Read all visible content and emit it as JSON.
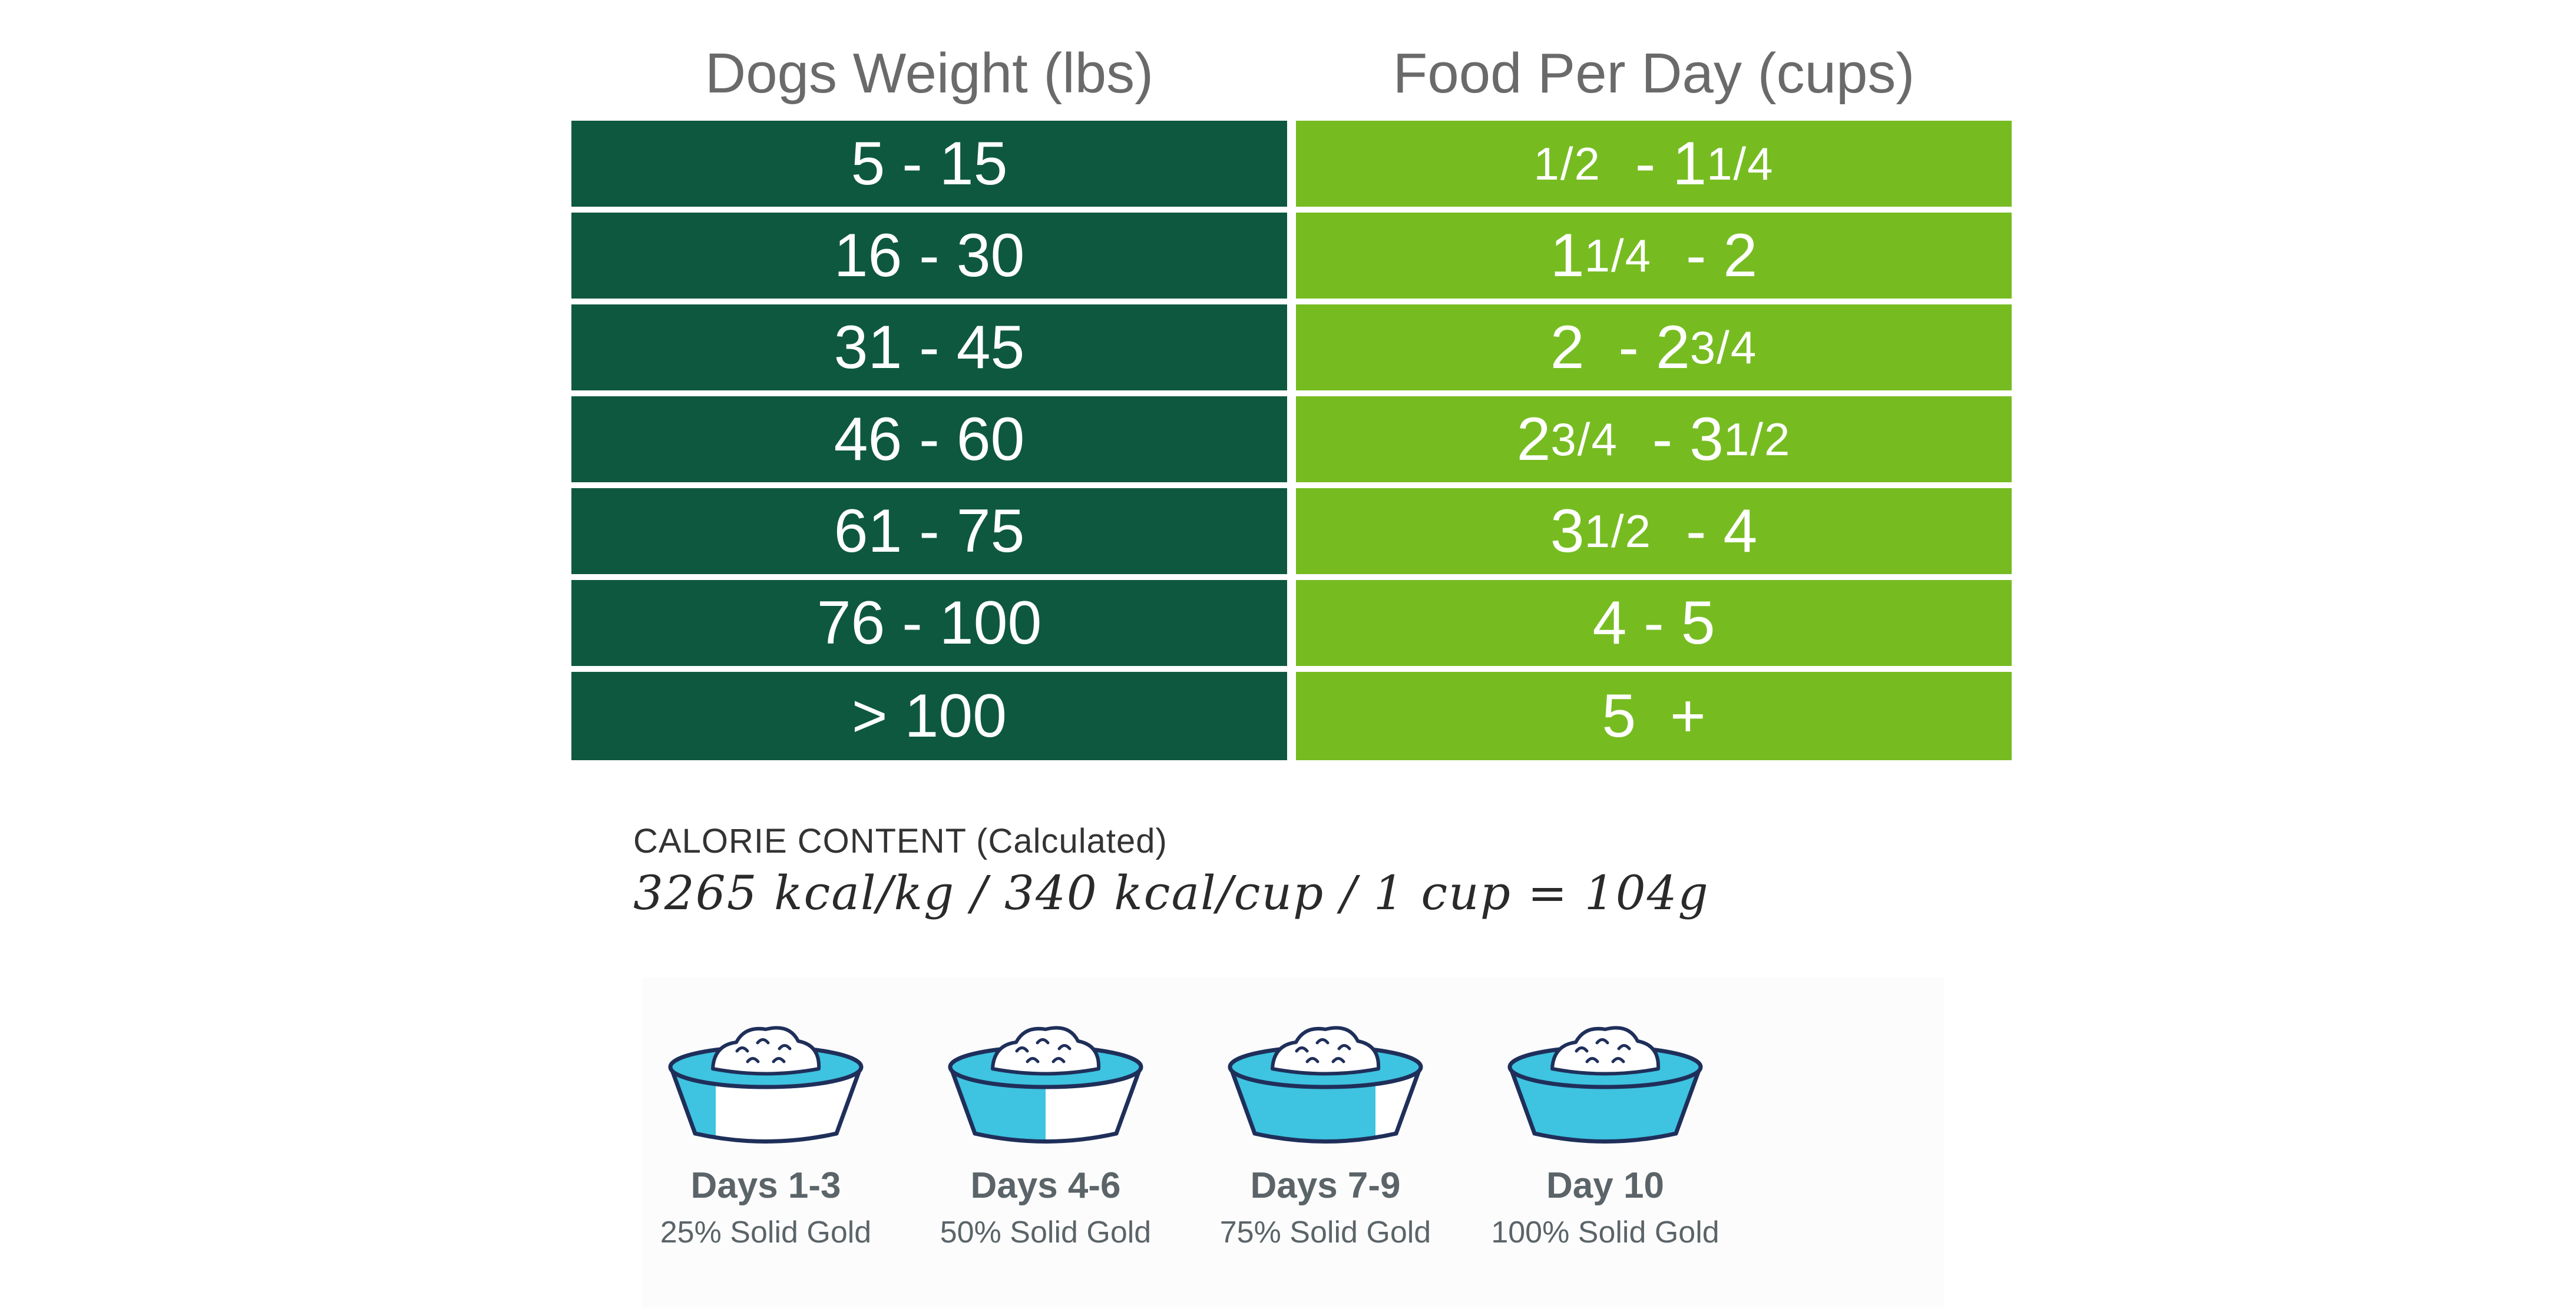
{
  "table": {
    "headers": {
      "weight": "Dogs Weight (lbs)",
      "food": "Food Per Day (cups)"
    },
    "rows": [
      {
        "weight": "5 - 15",
        "food_a": "",
        "food_a_frac": "1/2",
        "food_sep": "  - 1",
        "food_b_frac": "1/4"
      },
      {
        "weight": "16 - 30",
        "food_a": "1",
        "food_a_frac": "1/4",
        "food_sep": "  - 2",
        "food_b_frac": ""
      },
      {
        "weight": "31 - 45",
        "food_a": "2",
        "food_a_frac": "",
        "food_sep": "  - 2",
        "food_b_frac": "3/4"
      },
      {
        "weight": "46 - 60",
        "food_a": "2",
        "food_a_frac": "3/4",
        "food_sep": "  - 3",
        "food_b_frac": "1/2"
      },
      {
        "weight": "61 - 75",
        "food_a": "3",
        "food_a_frac": "1/2",
        "food_sep": "  - 4",
        "food_b_frac": ""
      },
      {
        "weight": "76 - 100",
        "food_a": "4 - 5",
        "food_a_frac": "",
        "food_sep": "",
        "food_b_frac": ""
      },
      {
        "weight": "> 100",
        "food_a": "5  +",
        "food_a_frac": "",
        "food_sep": "",
        "food_b_frac": ""
      }
    ]
  },
  "calorie": {
    "title": "CALORIE CONTENT (Calculated)",
    "values": "3265 kcal/kg / 340 kcal/cup / 1 cup = 104g"
  },
  "transition": {
    "colors": {
      "blue": "#3ec3e0",
      "outline": "#1f2f5a",
      "text": "#5b6468"
    },
    "steps": [
      {
        "day": "Days 1-3",
        "percent": "25% Solid Gold",
        "fill_fraction": 0.25
      },
      {
        "day": "Days 4-6",
        "percent": "50% Solid Gold",
        "fill_fraction": 0.5
      },
      {
        "day": "Days 7-9",
        "percent": "75% Solid Gold",
        "fill_fraction": 0.75
      },
      {
        "day": "Day 10",
        "percent": "100% Solid Gold",
        "fill_fraction": 1.0
      }
    ]
  }
}
